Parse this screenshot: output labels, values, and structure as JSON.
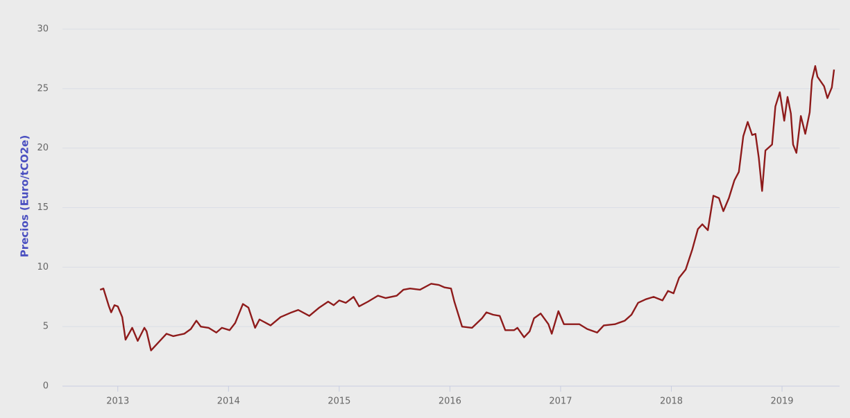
{
  "chart_data": {
    "type": "line",
    "y_label": "Precios (Euro/tCO2e)",
    "x": [
      2012.84,
      2012.87,
      2012.92,
      2012.94,
      2012.97,
      2013.0,
      2013.04,
      2013.07,
      2013.13,
      2013.18,
      2013.24,
      2013.26,
      2013.3,
      2013.36,
      2013.44,
      2013.5,
      2013.6,
      2013.66,
      2013.71,
      2013.75,
      2013.82,
      2013.89,
      2013.94,
      2014.01,
      2014.06,
      2014.13,
      2014.18,
      2014.24,
      2014.28,
      2014.38,
      2014.47,
      2014.57,
      2014.63,
      2014.73,
      2014.82,
      2014.9,
      2014.95,
      2015.0,
      2015.06,
      2015.13,
      2015.18,
      2015.26,
      2015.35,
      2015.42,
      2015.52,
      2015.58,
      2015.64,
      2015.73,
      2015.83,
      2015.9,
      2015.95,
      2016.01,
      2016.04,
      2016.11,
      2016.2,
      2016.29,
      2016.33,
      2016.39,
      2016.45,
      2016.5,
      2016.58,
      2016.61,
      2016.67,
      2016.72,
      2016.76,
      2016.82,
      2016.89,
      2016.92,
      2016.98,
      2017.03,
      2017.11,
      2017.17,
      2017.24,
      2017.33,
      2017.39,
      2017.49,
      2017.58,
      2017.64,
      2017.7,
      2017.77,
      2017.84,
      2017.92,
      2017.97,
      2018.02,
      2018.07,
      2018.13,
      2018.19,
      2018.24,
      2018.28,
      2018.33,
      2018.38,
      2018.43,
      2018.47,
      2018.52,
      2018.57,
      2018.61,
      2018.65,
      2018.69,
      2018.73,
      2018.76,
      2018.79,
      2018.82,
      2018.85,
      2018.91,
      2018.94,
      2018.98,
      2019.02,
      2019.05,
      2019.08,
      2019.1,
      2019.13,
      2019.17,
      2019.21,
      2019.25,
      2019.27,
      2019.3,
      2019.32,
      2019.35,
      2019.38,
      2019.41,
      2019.45,
      2019.47
    ],
    "series": [
      {
        "color": "#8e1b1b",
        "values": [
          8.1,
          8.2,
          6.7,
          6.2,
          6.8,
          6.7,
          5.8,
          3.9,
          4.9,
          3.8,
          4.9,
          4.6,
          3.0,
          3.6,
          4.4,
          4.2,
          4.4,
          4.8,
          5.5,
          5.0,
          4.9,
          4.5,
          4.9,
          4.7,
          5.3,
          6.9,
          6.6,
          4.9,
          5.6,
          5.1,
          5.8,
          6.2,
          6.4,
          5.9,
          6.6,
          7.1,
          6.8,
          7.2,
          7.0,
          7.5,
          6.7,
          7.1,
          7.6,
          7.4,
          7.6,
          8.1,
          8.2,
          8.1,
          8.6,
          8.5,
          8.3,
          8.2,
          7.1,
          5.0,
          4.9,
          5.7,
          6.2,
          6.0,
          5.9,
          4.7,
          4.7,
          4.9,
          4.1,
          4.6,
          5.7,
          6.1,
          5.2,
          4.4,
          6.3,
          5.2,
          5.2,
          5.2,
          4.8,
          4.5,
          5.1,
          5.2,
          5.5,
          6.0,
          7.0,
          7.3,
          7.5,
          7.2,
          8.0,
          7.8,
          9.1,
          9.8,
          11.5,
          13.2,
          13.6,
          13.1,
          16.0,
          15.8,
          14.7,
          15.8,
          17.3,
          18.0,
          21.0,
          22.2,
          21.1,
          21.2,
          19.2,
          16.4,
          19.8,
          20.3,
          23.5,
          24.7,
          22.3,
          24.3,
          22.9,
          20.3,
          19.6,
          22.7,
          21.2,
          23.0,
          25.7,
          26.9,
          26.0,
          25.6,
          25.2,
          24.2,
          25.1,
          26.6
        ]
      }
    ],
    "xlim": [
      2012.5,
      2019.52
    ],
    "xticks": [
      2013,
      2014,
      2015,
      2016,
      2017,
      2018,
      2019
    ],
    "ylim": [
      0,
      30
    ],
    "yticks": [
      0,
      5,
      10,
      15,
      20,
      25,
      30
    ],
    "grid": true
  }
}
